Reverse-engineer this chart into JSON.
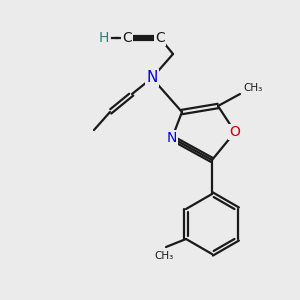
{
  "bg_color": "#ebebeb",
  "bond_color": "#1a1a1a",
  "bond_width": 1.6,
  "atom_colors": {
    "N": "#0000ee",
    "O": "#cc0000",
    "H": "#2e7f7f",
    "C": "#1a1a1a"
  },
  "figsize": [
    3.0,
    3.0
  ],
  "dpi": 100,
  "xlim": [
    0.0,
    3.0
  ],
  "ylim": [
    0.0,
    3.0
  ]
}
